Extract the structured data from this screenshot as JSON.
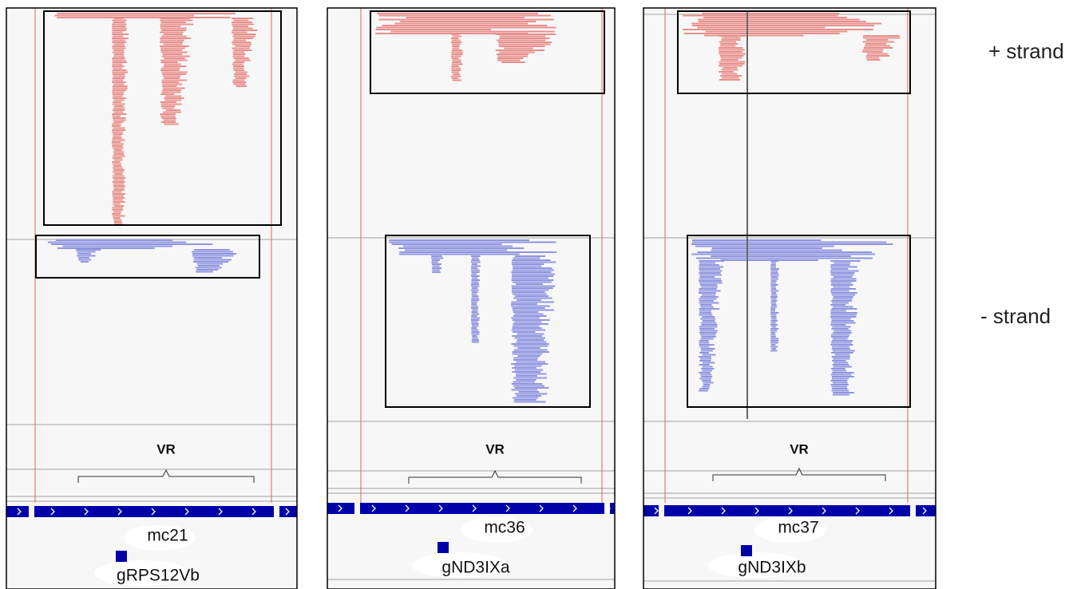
{
  "side_labels": {
    "plus": "+ strand",
    "minus": "- strand"
  },
  "panels": [
    {
      "region_label": "VR",
      "minicircle": "mc21",
      "gene": "gRPS12Vb"
    },
    {
      "region_label": "VR",
      "minicircle": "mc36",
      "gene": "gND3IXa"
    },
    {
      "region_label": "VR",
      "minicircle": "mc37",
      "gene": "gND3IXb"
    }
  ]
}
